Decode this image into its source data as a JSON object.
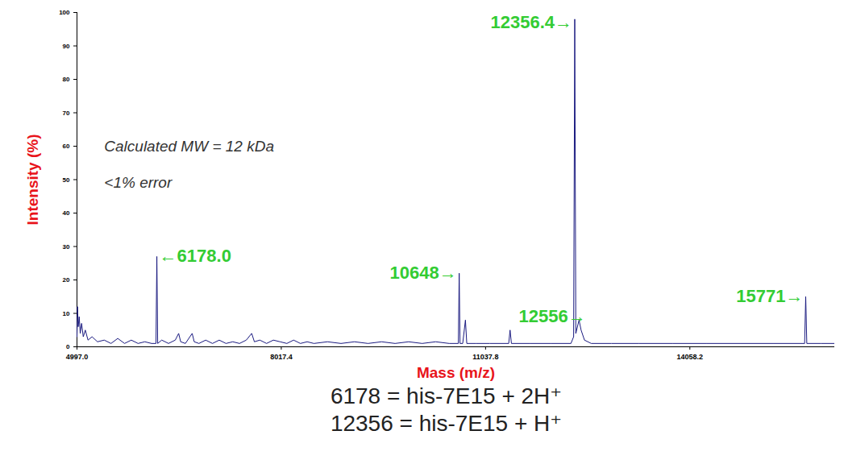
{
  "chart_data": {
    "type": "line",
    "color": "#1a1a80",
    "x_label": "Mass (m/z)",
    "y_label": "Intensity (%)",
    "x": [
      4997,
      5005,
      5015,
      5030,
      5045,
      5065,
      5090,
      5120,
      5160,
      5220,
      5300,
      5400,
      5500,
      5600,
      5700,
      5800,
      5900,
      6000,
      6100,
      6165,
      6178.0,
      6190,
      6250,
      6350,
      6450,
      6500,
      6530,
      6600,
      6700,
      6730,
      6800,
      6900,
      7000,
      7100,
      7200,
      7300,
      7400,
      7500,
      7580,
      7620,
      7700,
      7800,
      7900,
      8000,
      8100,
      8200,
      8300,
      8400,
      8500,
      8700,
      8900,
      9100,
      9300,
      9500,
      9700,
      9900,
      10100,
      10300,
      10500,
      10635,
      10648,
      10660,
      10700,
      10740,
      10760,
      10900,
      11100,
      11380,
      11400,
      11420,
      11700,
      12000,
      12300,
      12340,
      12356.4,
      12372,
      12420,
      12450,
      12500,
      12600,
      12900,
      13300,
      13800,
      14300,
      14800,
      15300,
      15755,
      15771,
      15787,
      16000,
      16200
    ],
    "values": [
      3,
      12,
      6,
      9,
      4,
      7,
      3,
      5,
      2,
      3,
      1.5,
      2,
      1,
      2.5,
      1,
      2,
      1,
      1.5,
      1,
      1,
      27,
      1,
      2,
      1,
      2,
      4,
      1.5,
      1,
      4,
      1.5,
      1,
      2,
      1,
      2,
      1,
      1.5,
      1,
      2,
      4,
      1.5,
      2,
      1,
      2,
      1.5,
      1,
      2,
      1,
      1.5,
      1,
      1.5,
      1,
      1.5,
      1,
      1.5,
      1,
      1.5,
      1,
      1.5,
      1,
      1,
      22,
      1,
      1,
      8,
      1,
      1,
      1,
      1,
      5,
      1,
      1,
      1,
      1,
      3,
      98,
      4,
      8,
      5,
      2,
      1,
      1,
      1,
      1,
      1,
      1,
      1,
      1,
      15,
      1,
      1,
      1
    ],
    "xlim": [
      4997.0,
      16200
    ],
    "ylim": [
      0,
      100
    ],
    "xticks": [
      {
        "value": 4997.0,
        "label": "4997.0"
      },
      {
        "value": 8017.4,
        "label": "8017.4"
      },
      {
        "value": 11037.8,
        "label": "11037.8"
      },
      {
        "value": 14058.2,
        "label": "14058.2"
      }
    ],
    "yticks": [
      0,
      10,
      20,
      30,
      40,
      50,
      60,
      70,
      80,
      90,
      100
    ],
    "grid": false,
    "annotations": [
      {
        "text": "←6178.0",
        "x": 6178.0,
        "y": 27,
        "color": "#33cc33"
      },
      {
        "text": "10648→",
        "x": 10648,
        "y": 22,
        "color": "#33cc33"
      },
      {
        "text": "12556→",
        "x": 12556,
        "y": 9,
        "color": "#33cc33"
      },
      {
        "text": "12356.4→",
        "x": 12356.4,
        "y": 97,
        "color": "#33cc33"
      },
      {
        "text": "15771→",
        "x": 15771,
        "y": 15,
        "color": "#33cc33"
      }
    ],
    "notes": [
      {
        "text": "Calculated MW = 12 kDa",
        "x": 5400,
        "y": 60
      },
      {
        "text": "<1% error",
        "x": 5400,
        "y": 49
      }
    ],
    "caption": [
      "6178 = his-7E15 + 2H⁺",
      "12356 = his-7E15 + H⁺"
    ]
  }
}
